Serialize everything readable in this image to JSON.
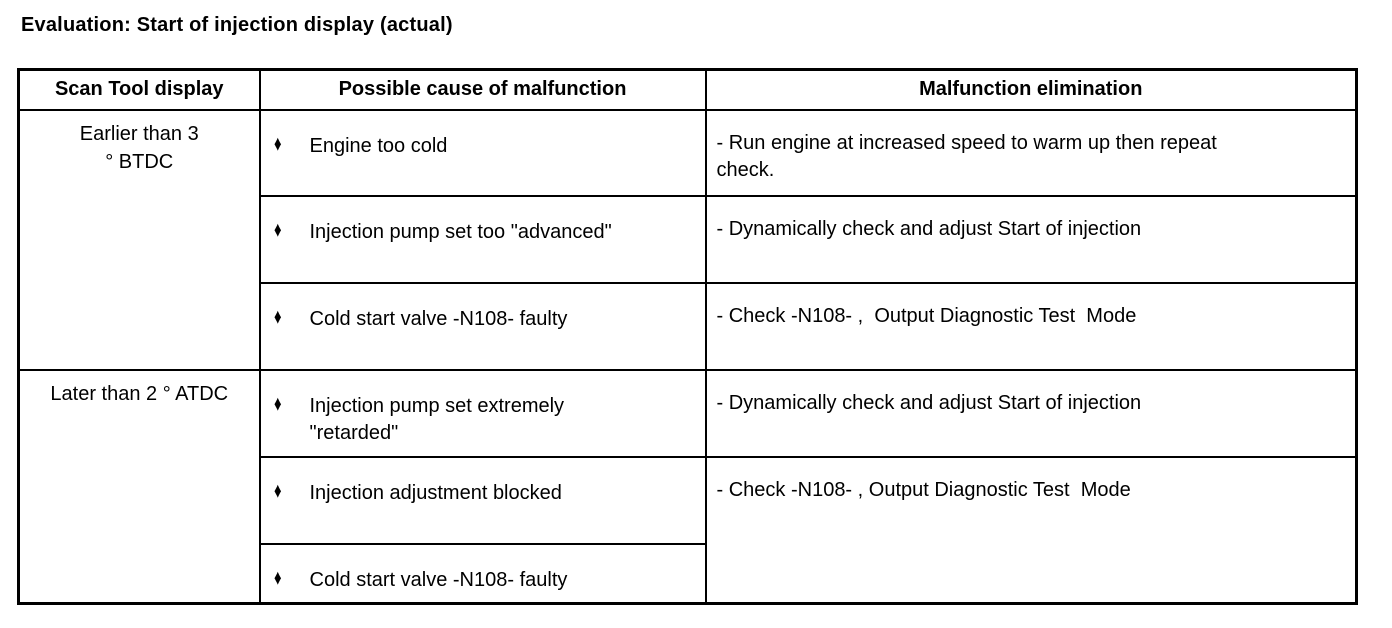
{
  "page": {
    "title": "Evaluation: Start of injection display (actual)"
  },
  "table": {
    "bullet_icon": "♦",
    "headers": [
      "Scan Tool display",
      "Possible cause of malfunction",
      "Malfunction elimination"
    ],
    "groups": [
      {
        "display": [
          "Earlier than 3",
          "° BTDC"
        ],
        "rows": [
          {
            "cause": "Engine too cold",
            "elimination": "- Run engine at increased speed to warm up then repeat\ncheck."
          },
          {
            "cause": "Injection pump set too \"advanced\"",
            "elimination": "- Dynamically check and adjust Start of injection"
          },
          {
            "cause": "Cold start valve -N108- faulty",
            "elimination": "- Check -N108- ,  Output Diagnostic Test  Mode"
          }
        ]
      },
      {
        "display": [
          "Later than 2 ° ATDC"
        ],
        "rows": [
          {
            "cause": "Injection pump set extremely\n\"retarded\"",
            "elimination": "- Dynamically check and adjust Start of injection"
          },
          {
            "cause": "Injection adjustment blocked",
            "elimination": "- Check -N108- , Output Diagnostic Test  Mode"
          },
          {
            "cause": "Cold start valve -N108- faulty",
            "elimination": ""
          }
        ]
      }
    ]
  }
}
